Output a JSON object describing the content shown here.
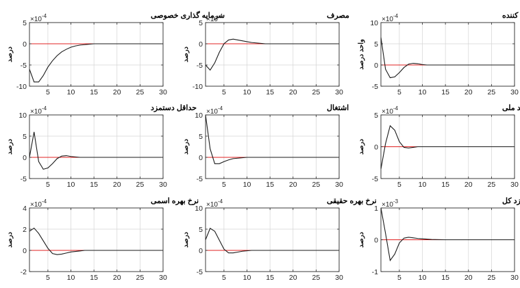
{
  "colors": {
    "response": "#1a1a1a",
    "zero_line": "#e02020",
    "axes": "#262626",
    "grid": "#d4d4d4"
  },
  "chart_data": [
    {
      "type": "line",
      "title": "سرمایه گذاری خصوصی",
      "ylabel": "درصد",
      "exponent_base": "×10",
      "exponent_power": "-4",
      "xlim": [
        1,
        30
      ],
      "ylim": [
        -10,
        5
      ],
      "xticks": [
        5,
        10,
        15,
        20,
        25,
        30
      ],
      "yticks": [
        -10,
        -5,
        0,
        5
      ],
      "grid": true,
      "series": [
        {
          "x": [
            1,
            2,
            3,
            4,
            5,
            6,
            7,
            8,
            9,
            10,
            11,
            12,
            13,
            14,
            15,
            17,
            20,
            25,
            30
          ],
          "y": [
            -6,
            -9,
            -9,
            -7.5,
            -5.5,
            -4,
            -2.8,
            -1.9,
            -1.3,
            -0.8,
            -0.5,
            -0.3,
            -0.2,
            -0.1,
            0,
            0,
            0,
            0,
            0
          ]
        }
      ]
    },
    {
      "type": "line",
      "title": "مصرف",
      "ylabel": "درصد",
      "exponent_base": "×10",
      "exponent_power": "-4",
      "xlim": [
        1,
        30
      ],
      "ylim": [
        -10,
        5
      ],
      "xticks": [
        5,
        10,
        15,
        20,
        25,
        30
      ],
      "yticks": [
        -10,
        -5,
        0,
        5
      ],
      "grid": true,
      "series": [
        {
          "x": [
            1,
            2,
            3,
            4,
            5,
            6,
            7,
            8,
            9,
            10,
            11,
            12,
            13,
            14,
            15,
            17,
            20,
            25,
            30
          ],
          "y": [
            -5,
            -6.2,
            -4.5,
            -2,
            0,
            0.9,
            1.1,
            0.9,
            0.7,
            0.5,
            0.3,
            0.2,
            0.1,
            0,
            0,
            0,
            0,
            0,
            0
          ]
        }
      ]
    },
    {
      "type": "line",
      "title": "شاخص قیمت مصرف کننده",
      "ylabel": "واحد درصد",
      "exponent_base": "×10",
      "exponent_power": "-4",
      "xlim": [
        1,
        30
      ],
      "ylim": [
        -5,
        10
      ],
      "xticks": [
        5,
        10,
        15,
        20,
        25,
        30
      ],
      "yticks": [
        -5,
        0,
        5,
        10
      ],
      "grid": true,
      "series": [
        {
          "x": [
            1,
            2,
            3,
            4,
            5,
            6,
            7,
            8,
            9,
            10,
            11,
            12,
            13,
            15,
            20,
            25,
            30
          ],
          "y": [
            6.5,
            -1,
            -3,
            -2.8,
            -1.8,
            -0.6,
            0.2,
            0.4,
            0.3,
            0.1,
            0,
            0,
            0,
            0,
            0,
            0,
            0
          ]
        }
      ]
    },
    {
      "type": "line",
      "title": "حداقل دستمزد",
      "ylabel": "درصد",
      "exponent_base": "×10",
      "exponent_power": "-4",
      "xlim": [
        1,
        30
      ],
      "ylim": [
        -5,
        10
      ],
      "xticks": [
        5,
        10,
        15,
        20,
        25,
        30
      ],
      "yticks": [
        -5,
        0,
        5,
        10
      ],
      "grid": true,
      "series": [
        {
          "x": [
            1,
            2,
            3,
            4,
            5,
            6,
            7,
            8,
            9,
            10,
            11,
            12,
            13,
            15,
            20,
            25,
            30
          ],
          "y": [
            0,
            6,
            -1,
            -2.8,
            -2.5,
            -1.5,
            -0.3,
            0.3,
            0.4,
            0.2,
            0.1,
            0,
            0,
            0,
            0,
            0,
            0
          ]
        }
      ]
    },
    {
      "type": "line",
      "title": "اشتغال",
      "ylabel": "درصد",
      "exponent_base": "×10",
      "exponent_power": "-4",
      "xlim": [
        1,
        30
      ],
      "ylim": [
        -5,
        10
      ],
      "xticks": [
        5,
        10,
        15,
        20,
        25,
        30
      ],
      "yticks": [
        -5,
        0,
        5,
        10
      ],
      "grid": true,
      "series": [
        {
          "x": [
            1,
            2,
            3,
            4,
            5,
            6,
            7,
            8,
            9,
            10,
            12,
            15,
            20,
            25,
            30
          ],
          "y": [
            10,
            2,
            -1.5,
            -1.5,
            -1,
            -0.6,
            -0.3,
            -0.2,
            -0.1,
            0,
            0,
            0,
            0,
            0,
            0
          ]
        }
      ]
    },
    {
      "type": "line",
      "title": "تولید ملی",
      "ylabel": "درصد",
      "exponent_base": "×10",
      "exponent_power": "-4",
      "xlim": [
        1,
        30
      ],
      "ylim": [
        -5,
        5
      ],
      "xticks": [
        5,
        10,
        15,
        20,
        25,
        30
      ],
      "yticks": [
        -5,
        0,
        5
      ],
      "grid": true,
      "series": [
        {
          "x": [
            1,
            2,
            3,
            4,
            5,
            6,
            7,
            8,
            9,
            10,
            12,
            15,
            20,
            25,
            30
          ],
          "y": [
            -3.5,
            0.5,
            3.3,
            2.6,
            0.8,
            -0.1,
            -0.2,
            -0.1,
            0,
            0,
            0,
            0,
            0,
            0,
            0
          ]
        }
      ]
    },
    {
      "type": "line",
      "title": "نرخ بهره اسمی",
      "ylabel": "درصد",
      "exponent_base": "×10",
      "exponent_power": "-4",
      "xlim": [
        1,
        30
      ],
      "ylim": [
        -2,
        4
      ],
      "xticks": [
        5,
        10,
        15,
        20,
        25,
        30
      ],
      "yticks": [
        -2,
        0,
        2,
        4
      ],
      "grid": true,
      "series": [
        {
          "x": [
            1,
            2,
            3,
            4,
            5,
            6,
            7,
            8,
            9,
            10,
            11,
            12,
            13,
            14,
            15,
            17,
            20,
            25,
            30
          ],
          "y": [
            1.8,
            2.1,
            1.6,
            0.9,
            0.2,
            -0.3,
            -0.4,
            -0.35,
            -0.25,
            -0.15,
            -0.1,
            -0.05,
            0,
            0,
            0,
            0,
            0,
            0,
            0
          ]
        }
      ]
    },
    {
      "type": "line",
      "title": "نرخ بهره حقیقی",
      "ylabel": "درصد",
      "exponent_base": "×10",
      "exponent_power": "-4",
      "xlim": [
        1,
        30
      ],
      "ylim": [
        -5,
        10
      ],
      "xticks": [
        5,
        10,
        15,
        20,
        25,
        30
      ],
      "yticks": [
        -5,
        0,
        5,
        10
      ],
      "grid": true,
      "series": [
        {
          "x": [
            1,
            2,
            3,
            4,
            5,
            6,
            7,
            8,
            9,
            10,
            11,
            12,
            13,
            15,
            20,
            25,
            30
          ],
          "y": [
            2.5,
            5.2,
            4.5,
            2.4,
            0.3,
            -0.6,
            -0.6,
            -0.4,
            -0.2,
            -0.1,
            0,
            0,
            0,
            0,
            0,
            0,
            0
          ]
        }
      ]
    },
    {
      "type": "line",
      "title": "رشد دستمزد کل",
      "ylabel": "درصد",
      "exponent_base": "×10",
      "exponent_power": "-3",
      "xlim": [
        1,
        30
      ],
      "ylim": [
        -1,
        1
      ],
      "xticks": [
        5,
        10,
        15,
        20,
        25,
        30
      ],
      "yticks": [
        -1,
        0,
        1
      ],
      "grid": true,
      "series": [
        {
          "x": [
            1,
            2,
            3,
            4,
            5,
            6,
            7,
            8,
            9,
            10,
            12,
            15,
            20,
            25,
            30
          ],
          "y": [
            1,
            0.2,
            -0.65,
            -0.45,
            -0.1,
            0.05,
            0.08,
            0.06,
            0.04,
            0.03,
            0.01,
            0,
            0,
            0,
            0
          ]
        }
      ]
    }
  ]
}
